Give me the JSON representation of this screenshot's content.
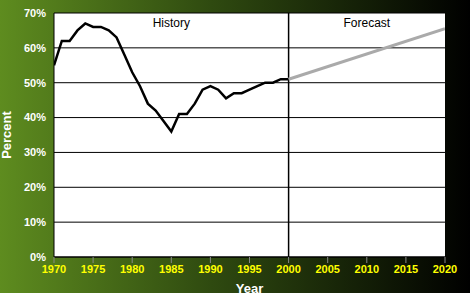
{
  "chart_data": {
    "type": "line",
    "x_label": "Year",
    "y_label": "Percent",
    "annotations": [
      "History",
      "Forecast"
    ],
    "x": [
      1970,
      1971,
      1972,
      1973,
      1974,
      1975,
      1976,
      1977,
      1978,
      1979,
      1980,
      1981,
      1982,
      1983,
      1984,
      1985,
      1986,
      1987,
      1988,
      1989,
      1990,
      1991,
      1992,
      1993,
      1994,
      1995,
      1996,
      1997,
      1998,
      1999,
      2000,
      2020
    ],
    "series": [
      {
        "name": "History",
        "color": "#000000",
        "values": [
          55,
          62,
          62,
          65,
          67,
          66,
          66,
          65,
          63,
          58,
          53,
          49,
          44,
          42,
          39,
          36,
          41,
          41,
          44,
          48,
          49,
          48,
          45.5,
          47,
          47,
          48,
          49,
          50,
          50,
          51,
          51,
          null
        ]
      },
      {
        "name": "Forecast",
        "color": "#aaaaaa",
        "values": [
          null,
          null,
          null,
          null,
          null,
          null,
          null,
          null,
          null,
          null,
          null,
          null,
          null,
          null,
          null,
          null,
          null,
          null,
          null,
          null,
          null,
          null,
          null,
          null,
          null,
          null,
          null,
          null,
          null,
          null,
          51,
          65.5
        ]
      }
    ],
    "xlim": [
      1970,
      2020
    ],
    "xticks": [
      1970,
      1975,
      1980,
      1985,
      1990,
      1995,
      2000,
      2005,
      2010,
      2015,
      2020
    ],
    "ylim": [
      0,
      70
    ],
    "yticks": [
      {
        "value": 0,
        "label": "0%"
      },
      {
        "value": 10,
        "label": "10%"
      },
      {
        "value": 20,
        "label": "20%"
      },
      {
        "value": 30,
        "label": "30%"
      },
      {
        "value": 40,
        "label": "40%"
      },
      {
        "value": 50,
        "label": "50%"
      },
      {
        "value": 60,
        "label": "60%"
      },
      {
        "value": 70,
        "label": "70%"
      }
    ],
    "grid": true
  }
}
